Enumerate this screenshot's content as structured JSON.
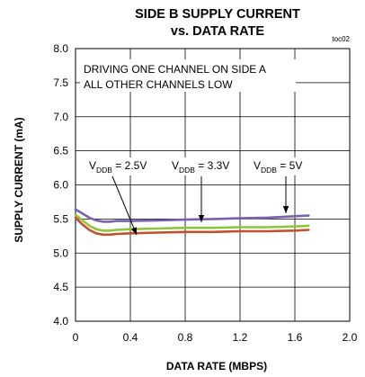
{
  "chart_data": {
    "type": "line",
    "title": "SIDE B SUPPLY CURRENT",
    "subtitle": "vs. DATA RATE",
    "figure_code": "toc02",
    "xlabel": "DATA RATE (MBPS)",
    "ylabel": "SUPPLY CURRENT (mA)",
    "xlim": [
      0,
      2.0
    ],
    "ylim": [
      4.0,
      8.0
    ],
    "x_ticks": [
      "0",
      "0.4",
      "0.8",
      "1.2",
      "1.6",
      "2.0"
    ],
    "y_ticks": [
      "4.0",
      "4.5",
      "5.0",
      "5.5",
      "6.0",
      "6.5",
      "7.0",
      "7.5",
      "8.0"
    ],
    "grid": true,
    "annotation_lines": [
      "DRIVING ONE CHANNEL ON SIDE A",
      "ALL OTHER CHANNELS LOW"
    ],
    "series": [
      {
        "label_main": "V",
        "label_sub": "DDB",
        "label_value": " = 5V",
        "color": "#7a61b0",
        "x": [
          0,
          0.05,
          0.1,
          0.15,
          0.2,
          0.25,
          0.3,
          0.4,
          0.6,
          0.8,
          1.0,
          1.2,
          1.4,
          1.6,
          1.7
        ],
        "y": [
          5.64,
          5.58,
          5.52,
          5.48,
          5.46,
          5.46,
          5.47,
          5.47,
          5.48,
          5.49,
          5.5,
          5.51,
          5.52,
          5.54,
          5.55
        ]
      },
      {
        "label_main": "V",
        "label_sub": "DDB",
        "label_value": " = 3.3V",
        "color": "#8cc63f",
        "x": [
          0,
          0.05,
          0.1,
          0.15,
          0.2,
          0.25,
          0.3,
          0.4,
          0.6,
          0.8,
          1.0,
          1.2,
          1.4,
          1.6,
          1.7
        ],
        "y": [
          5.56,
          5.48,
          5.4,
          5.35,
          5.33,
          5.33,
          5.34,
          5.35,
          5.36,
          5.37,
          5.37,
          5.38,
          5.38,
          5.39,
          5.4
        ]
      },
      {
        "label_main": "V",
        "label_sub": "DDB",
        "label_value": " = 2.5V",
        "color": "#c1502e",
        "x": [
          0,
          0.05,
          0.1,
          0.15,
          0.2,
          0.25,
          0.3,
          0.4,
          0.6,
          0.8,
          1.0,
          1.2,
          1.4,
          1.6,
          1.7
        ],
        "y": [
          5.52,
          5.42,
          5.34,
          5.29,
          5.27,
          5.27,
          5.28,
          5.29,
          5.3,
          5.31,
          5.31,
          5.32,
          5.32,
          5.33,
          5.34
        ]
      }
    ]
  }
}
